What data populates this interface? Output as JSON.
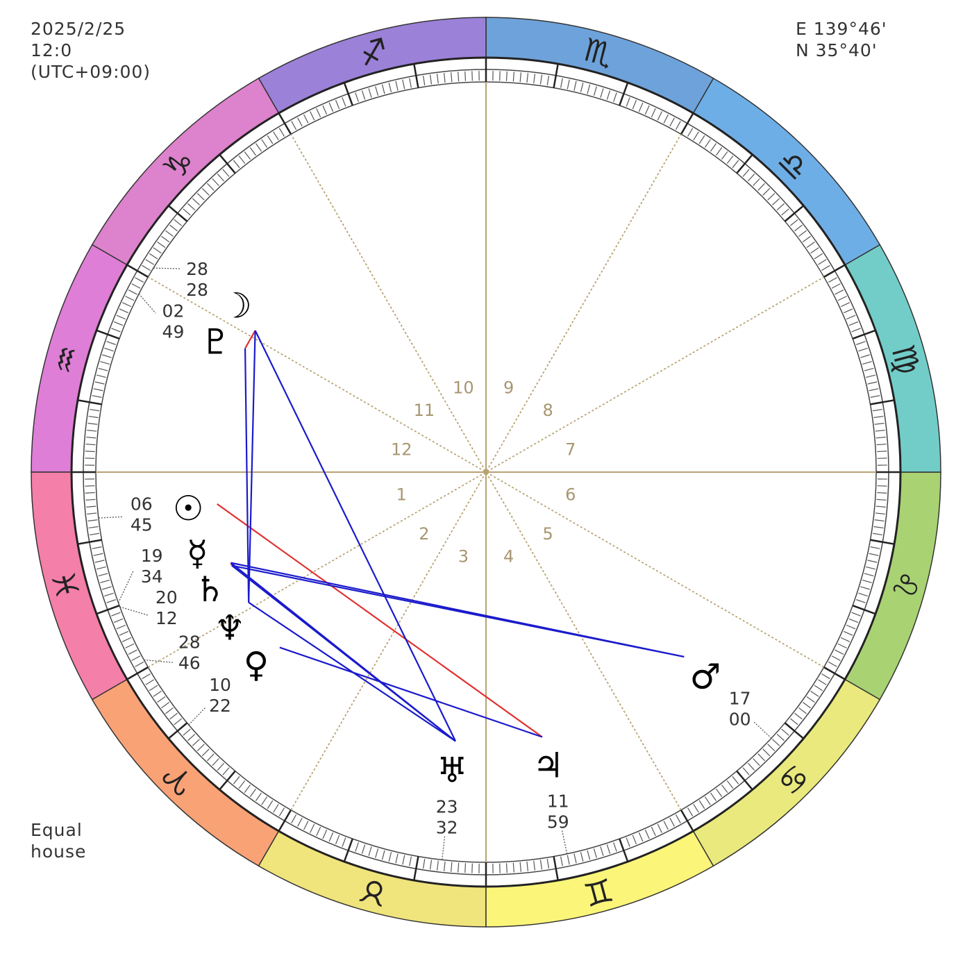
{
  "header": {
    "date": "2025/2/25",
    "time": "12:0",
    "timezone": "(UTC+09:00)",
    "longitude": "E 139°46'",
    "latitude": "N 35°40'"
  },
  "house_system": {
    "line1": "Equal",
    "line2": "house"
  },
  "chart": {
    "ascendant_longitude": 330,
    "house_line_color": "#b8a272",
    "aspect_colors": {
      "harmonious": "#1a1acc",
      "hard": "#e03030"
    }
  },
  "signs": [
    {
      "name": "aries",
      "glyph": "♈︎",
      "color": "#f9a276"
    },
    {
      "name": "taurus",
      "glyph": "♉︎",
      "color": "#f0e47c"
    },
    {
      "name": "gemini",
      "glyph": "♊︎",
      "color": "#fbf57a"
    },
    {
      "name": "cancer",
      "glyph": "♋︎",
      "color": "#e9e97e"
    },
    {
      "name": "leo",
      "glyph": "♌︎",
      "color": "#a9d273"
    },
    {
      "name": "virgo",
      "glyph": "♍︎",
      "color": "#72cdc8"
    },
    {
      "name": "libra",
      "glyph": "♎︎",
      "color": "#6eaee6"
    },
    {
      "name": "scorpio",
      "glyph": "♏︎",
      "color": "#6ea2da"
    },
    {
      "name": "sagittarius",
      "glyph": "♐︎",
      "color": "#9b81d8"
    },
    {
      "name": "capricorn",
      "glyph": "♑︎",
      "color": "#dd82cc"
    },
    {
      "name": "aquarius",
      "glyph": "♒︎",
      "color": "#de7ed6"
    },
    {
      "name": "pisces",
      "glyph": "♓︎",
      "color": "#f47fa8"
    }
  ],
  "houses": [
    "1",
    "2",
    "3",
    "4",
    "5",
    "6",
    "7",
    "8",
    "9",
    "10",
    "11",
    "12"
  ],
  "planets": [
    {
      "name": "moon",
      "glyph": "☽",
      "sign": "capricorn",
      "deg": "28",
      "min": "28"
    },
    {
      "name": "pluto",
      "glyph": "♇",
      "sign": "aquarius",
      "deg": "02",
      "min": "49"
    },
    {
      "name": "sun",
      "glyph": "☉",
      "sign": "pisces",
      "deg": "06",
      "min": "45"
    },
    {
      "name": "mercury",
      "glyph": "☿",
      "sign": "pisces",
      "deg": "19",
      "min": "34"
    },
    {
      "name": "saturn",
      "glyph": "♄",
      "sign": "pisces",
      "deg": "20",
      "min": "12"
    },
    {
      "name": "neptune",
      "glyph": "♆",
      "sign": "pisces",
      "deg": "28",
      "min": "46"
    },
    {
      "name": "venus",
      "glyph": "♀",
      "sign": "aries",
      "deg": "10",
      "min": "22"
    },
    {
      "name": "uranus",
      "glyph": "♅",
      "sign": "taurus",
      "deg": "23",
      "min": "32"
    },
    {
      "name": "jupiter",
      "glyph": "♃",
      "sign": "gemini",
      "deg": "11",
      "min": "59"
    },
    {
      "name": "mars",
      "glyph": "♂",
      "sign": "cancer",
      "deg": "17",
      "min": "00"
    }
  ],
  "aspects": [
    {
      "from": "moon",
      "to": "pluto",
      "kind": "hard"
    },
    {
      "from": "mercury",
      "to": "saturn",
      "kind": "hard"
    },
    {
      "from": "sun",
      "to": "jupiter",
      "kind": "hard"
    },
    {
      "from": "moon",
      "to": "neptune",
      "kind": "harmonious"
    },
    {
      "from": "pluto",
      "to": "neptune",
      "kind": "harmonious"
    },
    {
      "from": "moon",
      "to": "uranus",
      "kind": "harmonious"
    },
    {
      "from": "mercury",
      "to": "mars",
      "kind": "harmonious"
    },
    {
      "from": "saturn",
      "to": "mars",
      "kind": "harmonious"
    },
    {
      "from": "mercury",
      "to": "uranus",
      "kind": "harmonious"
    },
    {
      "from": "saturn",
      "to": "uranus",
      "kind": "harmonious"
    },
    {
      "from": "neptune",
      "to": "uranus",
      "kind": "harmonious"
    },
    {
      "from": "venus",
      "to": "jupiter",
      "kind": "harmonious"
    }
  ]
}
